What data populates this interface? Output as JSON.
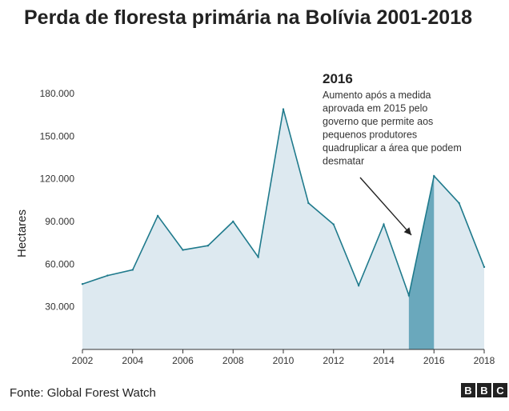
{
  "source": "Fonte: Global Forest Watch",
  "logo": [
    "B",
    "B",
    "C"
  ],
  "colors": {
    "area_fill": "#dde9f0",
    "line": "#1f7a8c",
    "highlight": "#6aa8bc",
    "axis": "#333333",
    "annotation": "#222222"
  },
  "chart_data": {
    "type": "area",
    "title": "Perda de floresta primária na Bolívia 2001-2018",
    "ylabel": "Hectares",
    "xlim": [
      2002,
      2018
    ],
    "ylim": [
      0,
      180000
    ],
    "x": [
      2002,
      2003,
      2004,
      2005,
      2006,
      2007,
      2008,
      2009,
      2010,
      2011,
      2012,
      2013,
      2014,
      2015,
      2016,
      2017,
      2018
    ],
    "values": [
      46000,
      52000,
      56000,
      94000,
      70000,
      73000,
      90000,
      65000,
      169000,
      103000,
      88000,
      45000,
      88000,
      38000,
      122000,
      103000,
      58000
    ],
    "x_ticks": [
      2002,
      2004,
      2006,
      2008,
      2010,
      2012,
      2014,
      2016,
      2018
    ],
    "y_ticks": [
      {
        "value": 30000,
        "label": "30.000"
      },
      {
        "value": 60000,
        "label": "60.000"
      },
      {
        "value": 90000,
        "label": "90.000"
      },
      {
        "value": 120000,
        "label": "120.000"
      },
      {
        "value": 150000,
        "label": "150.000"
      },
      {
        "value": 180000,
        "label": "180.000"
      }
    ],
    "highlight": {
      "from": 2015,
      "to": 2016
    },
    "annotation": {
      "year": "2016",
      "lines": [
        "Aumento após a medida",
        "aprovada em 2015 pelo",
        "governo que permite aos",
        "pequenos produtores",
        "quadruplicar a área que podem",
        "desmatar"
      ]
    },
    "grid": false
  }
}
